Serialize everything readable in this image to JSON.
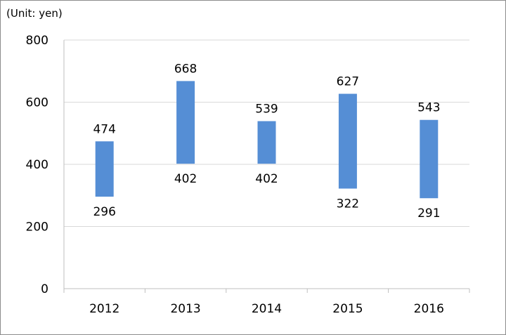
{
  "chart_data": {
    "type": "bar",
    "subtype": "floating-range",
    "unit_label": "(Unit: yen)",
    "categories": [
      "2012",
      "2013",
      "2014",
      "2015",
      "2016"
    ],
    "low": [
      296,
      402,
      402,
      322,
      291
    ],
    "high": [
      474,
      668,
      539,
      627,
      543
    ],
    "low_labels": [
      "296",
      "402",
      "402",
      "322",
      "291"
    ],
    "high_labels": [
      "474",
      "668",
      "539",
      "627",
      "543"
    ],
    "ylim": [
      0,
      800
    ],
    "yticks": [
      "0",
      "200",
      "400",
      "600",
      "800"
    ],
    "grid": true,
    "bar_color": "#558ed5",
    "grid_color": "#d9d9d9",
    "axis_color": "#bfbfbf"
  }
}
